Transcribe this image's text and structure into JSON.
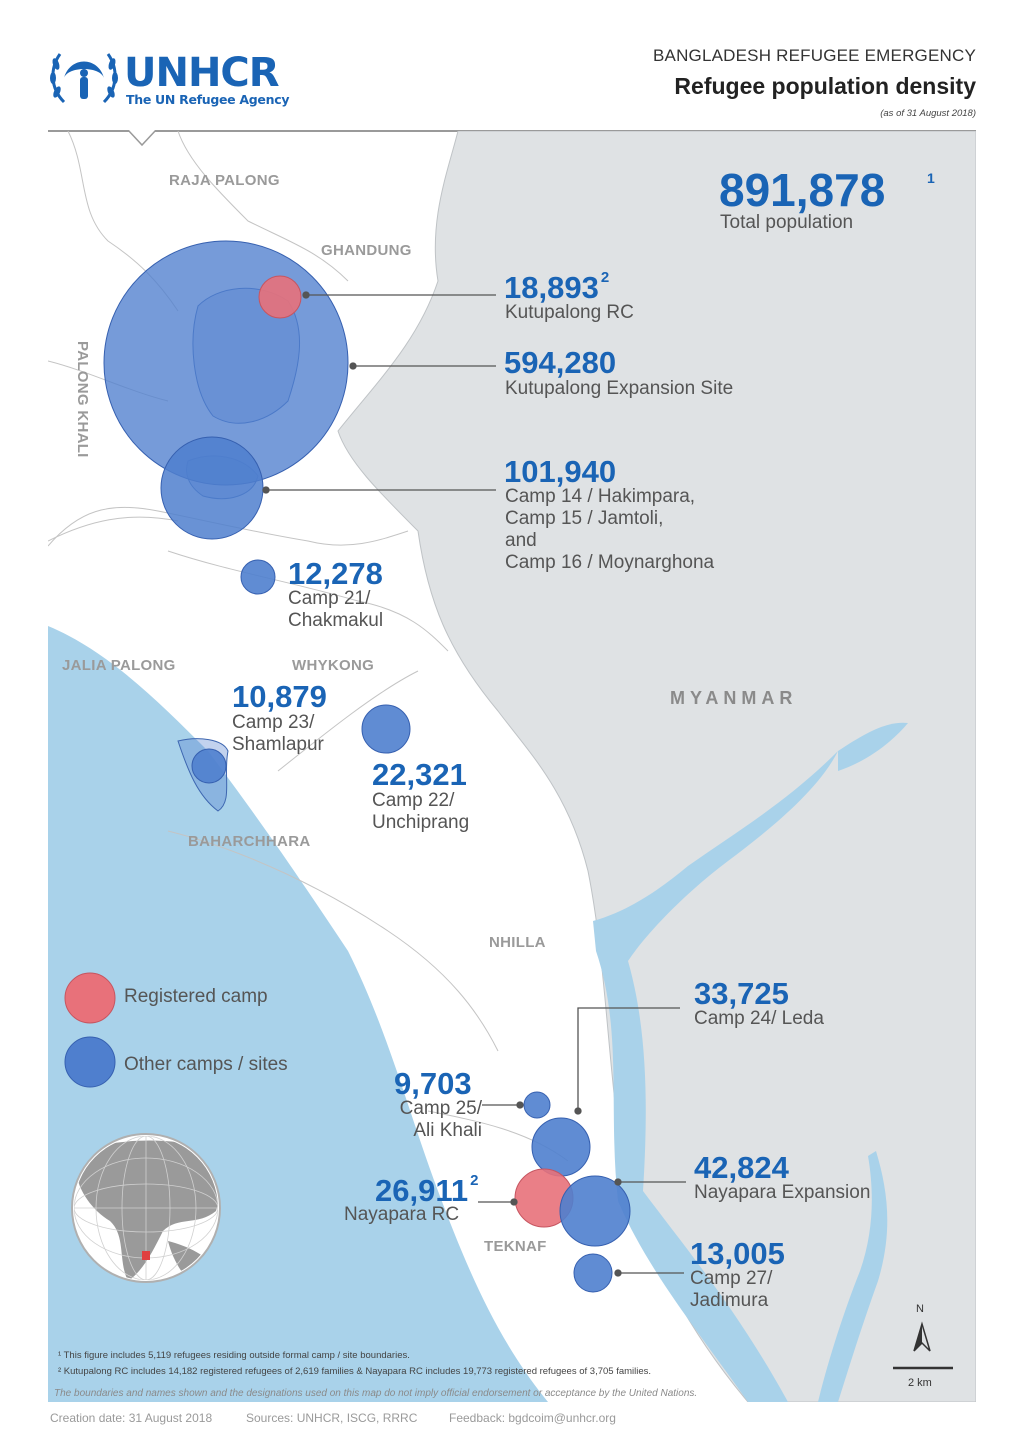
{
  "header": {
    "logo_text": "UNHCR",
    "logo_subtitle": "The UN Refugee Agency",
    "supertitle": "BANGLADESH REFUGEE EMERGENCY",
    "title": "Refugee population density",
    "date_note": "(as of 31 August 2018)"
  },
  "total": {
    "value": "891,878",
    "sup": "1",
    "label": "Total population"
  },
  "places": {
    "raja_palong": "RAJA PALONG",
    "ghandung": "GHANDUNG",
    "palong_khali": "PALONG KHALI",
    "jalia_palong": "JALIA PALONG",
    "whykong": "WHYKONG",
    "baharchhara": "BAHARCHHARA",
    "nhilla": "NHILLA",
    "teknaf": "TEKNAF"
  },
  "country_label": "MYANMAR",
  "camps": [
    {
      "value": "18,893",
      "sup": "2",
      "name": "Kutupalong RC",
      "type": "registered"
    },
    {
      "value": "594,280",
      "sup": "",
      "name": "Kutupalong Expansion Site",
      "type": "other"
    },
    {
      "value": "101,940",
      "sup": "",
      "name_lines": [
        "Camp 14 / Hakimpara,",
        "Camp 15 / Jamtoli,",
        "and",
        "Camp 16 / Moynarghona"
      ],
      "type": "other"
    },
    {
      "value": "12,278",
      "sup": "",
      "name_lines": [
        "Camp 21/",
        "Chakmakul"
      ],
      "type": "other"
    },
    {
      "value": "10,879",
      "sup": "",
      "name_lines": [
        "Camp 23/",
        "Shamlapur"
      ],
      "type": "other"
    },
    {
      "value": "22,321",
      "sup": "",
      "name_lines": [
        "Camp 22/",
        "Unchiprang"
      ],
      "type": "other"
    },
    {
      "value": "33,725",
      "sup": "",
      "name": "Camp 24/ Leda",
      "type": "other"
    },
    {
      "value": "9,703",
      "sup": "",
      "name_lines": [
        "Camp 25/",
        "Ali Khali"
      ],
      "type": "other"
    },
    {
      "value": "42,824",
      "sup": "",
      "name": "Nayapara Expansion",
      "type": "other"
    },
    {
      "value": "26,911",
      "sup": "2",
      "name": "Nayapara RC",
      "type": "registered"
    },
    {
      "value": "13,005",
      "sup": "",
      "name_lines": [
        "Camp 27/",
        "Jadimura"
      ],
      "type": "other"
    }
  ],
  "legend": {
    "registered": "Registered camp",
    "other": "Other camps / sites",
    "registered_color": "#e8717a",
    "other_color": "#4f7fce"
  },
  "colors": {
    "sea": "#a9d2ea",
    "myanmar": "#dfe2e4",
    "bangladesh": "#ffffff",
    "accent": "#1a64b5"
  },
  "scale": {
    "label": "2 km",
    "north": "N"
  },
  "footnotes": {
    "fn1": "¹ This figure includes 5,119 refugees residing outside formal camp / site boundaries.",
    "fn2": "² Kutupalong RC includes 14,182 registered refugees of 2,619 families & Nayapara RC includes 19,773 registered refugees of 3,705 families.",
    "disclaimer": "The boundaries and names shown and the designations used on this map do not imply official endorsement or acceptance by the United Nations."
  },
  "credits": {
    "creation": "Creation date: 31 August 2018",
    "sources": "Sources: UNHCR, ISCG, RRRC",
    "feedback": "Feedback: bgdcoim@unhcr.org"
  }
}
